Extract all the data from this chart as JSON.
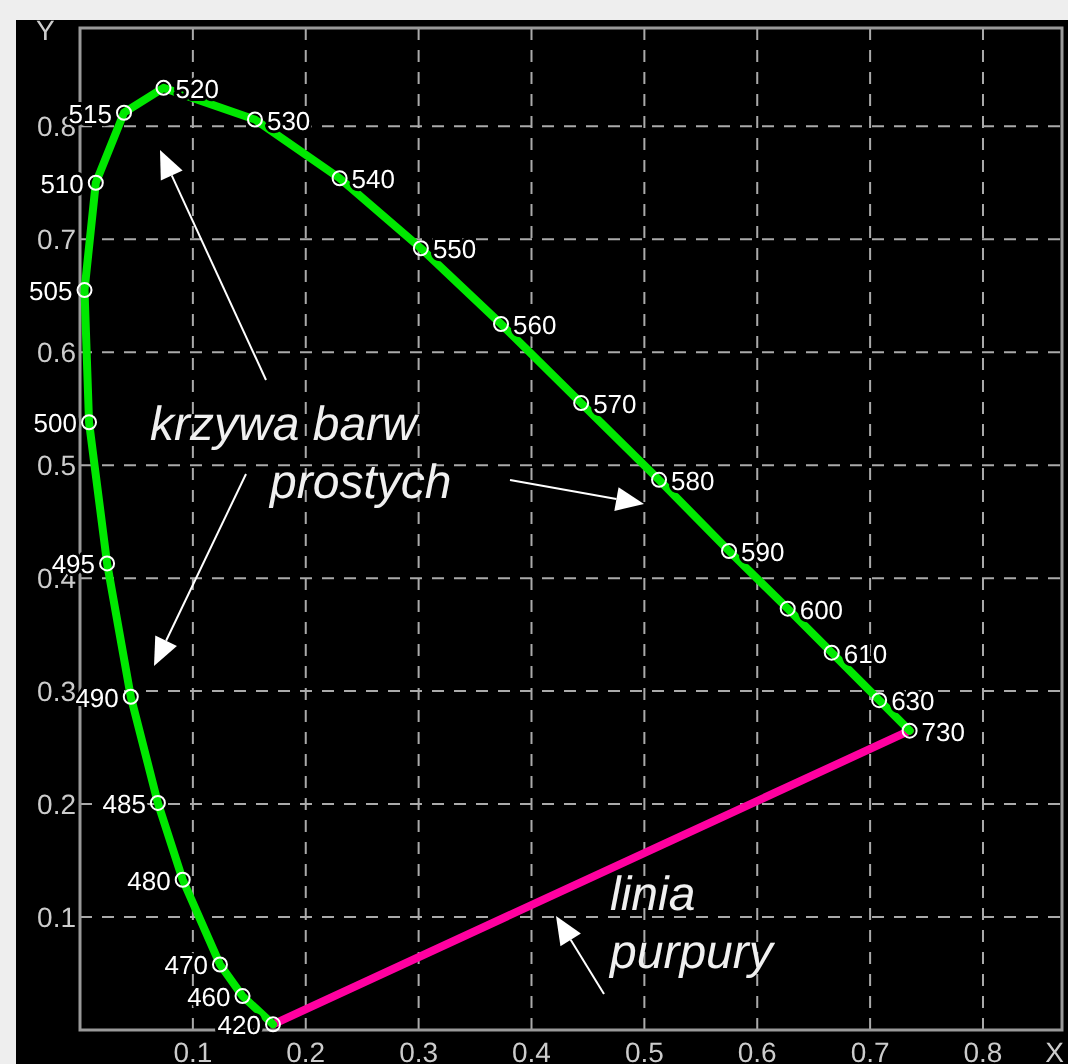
{
  "chart_data": {
    "type": "line",
    "xlabel": "X",
    "ylabel": "Y",
    "xlim": [
      0,
      0.87
    ],
    "ylim": [
      0,
      0.887
    ],
    "xticks": [
      {
        "value": 0,
        "label": null
      },
      0.1,
      0.2,
      0.3,
      0.4,
      0.5,
      0.6,
      0.7,
      0.8
    ],
    "yticks": [
      {
        "value": 0,
        "label": null
      },
      0.1,
      0.2,
      0.3,
      0.4,
      0.5,
      0.6,
      0.7,
      0.8
    ],
    "grid": true,
    "marker": "circle",
    "line_style": "solid",
    "series": [
      {
        "color": "#00e800",
        "x": [
          0.171,
          0.144,
          0.124,
          0.091,
          0.069,
          0.045,
          0.024,
          0.008,
          0.004,
          0.014,
          0.039,
          0.074,
          0.155,
          0.23,
          0.302,
          0.373,
          0.444,
          0.513,
          0.575,
          0.627,
          0.666,
          0.708,
          0.735
        ],
        "values": [
          0.005,
          0.03,
          0.058,
          0.133,
          0.201,
          0.295,
          0.413,
          0.538,
          0.655,
          0.75,
          0.812,
          0.834,
          0.806,
          0.754,
          0.692,
          0.625,
          0.555,
          0.487,
          0.424,
          0.373,
          0.334,
          0.292,
          0.265
        ]
      },
      {
        "color": "#ff00a0",
        "x": [
          0.171,
          0.735
        ],
        "values": [
          0.005,
          0.265
        ],
        "marker": "none"
      }
    ],
    "annotations": [
      "krzywa barw prostych",
      "linia purpury",
      {
        "text": "420",
        "x": 0.171,
        "y": 0.005
      },
      {
        "text": "460",
        "x": 0.144,
        "y": 0.03
      },
      {
        "text": "470",
        "x": 0.124,
        "y": 0.058
      },
      {
        "text": "480",
        "x": 0.091,
        "y": 0.133
      },
      {
        "text": "485",
        "x": 0.069,
        "y": 0.201
      },
      {
        "text": "490",
        "x": 0.045,
        "y": 0.295
      },
      {
        "text": "495",
        "x": 0.024,
        "y": 0.413
      },
      {
        "text": "500",
        "x": 0.008,
        "y": 0.538
      },
      {
        "text": "505",
        "x": 0.004,
        "y": 0.655
      },
      {
        "text": "510",
        "x": 0.014,
        "y": 0.75
      },
      {
        "text": "515",
        "x": 0.039,
        "y": 0.812
      },
      {
        "text": "520",
        "x": 0.074,
        "y": 0.834
      },
      {
        "text": "530",
        "x": 0.155,
        "y": 0.806
      },
      {
        "text": "540",
        "x": 0.23,
        "y": 0.754
      },
      {
        "text": "550",
        "x": 0.302,
        "y": 0.692
      },
      {
        "text": "560",
        "x": 0.373,
        "y": 0.625
      },
      {
        "text": "570",
        "x": 0.444,
        "y": 0.555
      },
      {
        "text": "580",
        "x": 0.513,
        "y": 0.487
      },
      {
        "text": "590",
        "x": 0.575,
        "y": 0.424
      },
      {
        "text": "600",
        "x": 0.627,
        "y": 0.373
      },
      {
        "text": "610",
        "x": 0.666,
        "y": 0.334
      },
      {
        "text": "630",
        "x": 0.708,
        "y": 0.292
      },
      {
        "text": "730",
        "x": 0.735,
        "y": 0.265
      }
    ]
  }
}
